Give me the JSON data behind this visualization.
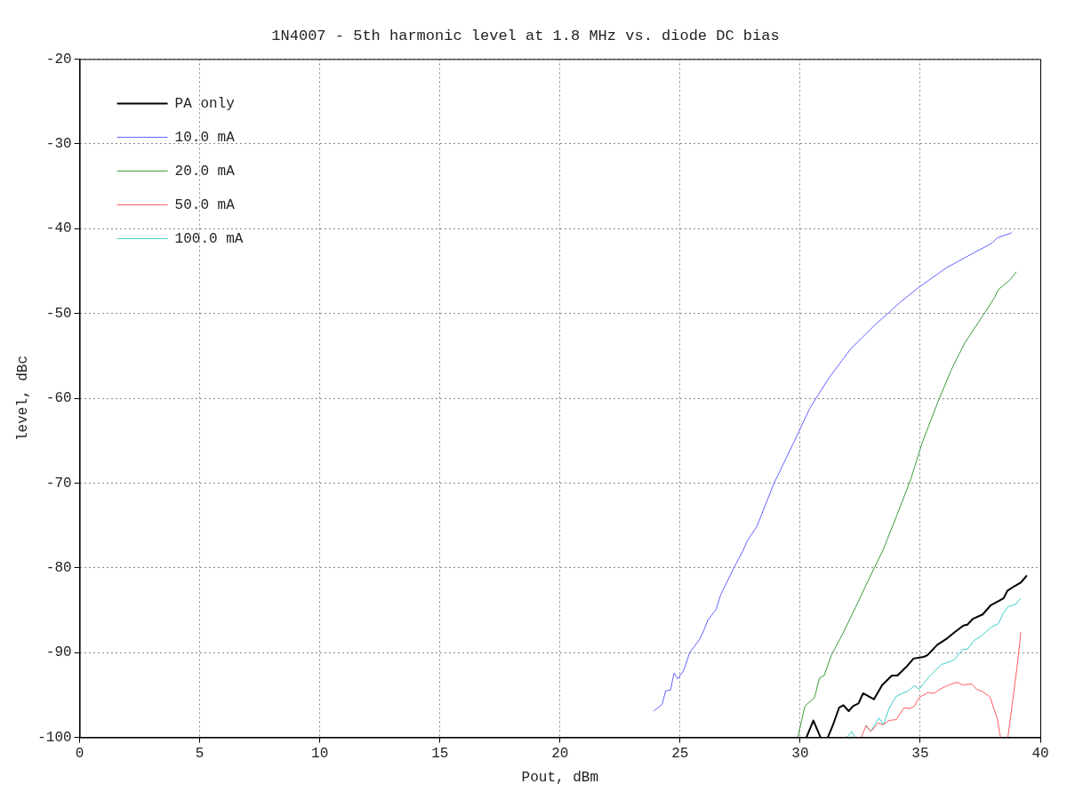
{
  "chart_data": {
    "type": "line",
    "title": "1N4007 - 5th harmonic level at 1.8 MHz vs. diode DC bias",
    "xlabel": "Pout, dBm",
    "ylabel": "level, dBc",
    "xlim": [
      0,
      40
    ],
    "xticks": [
      0,
      5,
      10,
      15,
      20,
      25,
      30,
      35,
      40
    ],
    "ylim": [
      -100,
      -20
    ],
    "yticks": [
      -100,
      -90,
      -80,
      -70,
      -60,
      -50,
      -40,
      -30,
      -20
    ],
    "grid": true,
    "legend": "top left",
    "marker": "none",
    "line_style": "solid",
    "series": [
      {
        "name": "PA only",
        "color": "#000000",
        "x": [
          30.26,
          30.55,
          30.85,
          31.0,
          31.15,
          31.37,
          31.62,
          31.8,
          32.02,
          32.2,
          32.43,
          32.62,
          33.07,
          33.42,
          33.82,
          34.05,
          34.45,
          34.72,
          35.14,
          35.3,
          35.7,
          36.08,
          36.43,
          36.8,
          36.96,
          37.2,
          37.6,
          37.94,
          38.47,
          38.63,
          38.9,
          39.2,
          39.44
        ],
        "values": [
          -100,
          -98.0,
          -100,
          null,
          -100,
          -98.5,
          -96.5,
          -96.2,
          -96.9,
          -96.3,
          -96.0,
          -94.8,
          -95.5,
          -93.8,
          -92.7,
          -92.7,
          -91.6,
          -90.7,
          -90.5,
          -90.3,
          -89.1,
          -88.4,
          -87.6,
          -86.8,
          -86.7,
          -86.0,
          -85.5,
          -84.4,
          -83.6,
          -82.7,
          -82.2,
          -81.7,
          -80.9
        ]
      },
      {
        "name": "10.0 mA",
        "color": "#6464ff",
        "x": [
          23.9,
          24.25,
          24.4,
          24.6,
          24.75,
          24.9,
          25.15,
          25.4,
          25.8,
          26.0,
          26.15,
          26.5,
          26.7,
          26.9,
          27.2,
          27.6,
          27.8,
          28.2,
          28.9,
          29.7,
          30.4,
          31.2,
          32.1,
          33.1,
          34.2,
          34.95,
          36.1,
          37.2,
          38.0,
          38.2,
          38.8
        ],
        "values": [
          -96.9,
          -96.1,
          -94.5,
          -94.4,
          -92.4,
          -93.1,
          -92.1,
          -90.0,
          -88.5,
          -87.3,
          -86.2,
          -84.9,
          -83.1,
          -82.0,
          -80.2,
          -78.1,
          -76.8,
          -75.1,
          -70.1,
          -65.4,
          -61.2,
          -57.6,
          -54.2,
          -51.4,
          -48.6,
          -46.9,
          -44.6,
          -42.9,
          -41.7,
          -41.1,
          -40.5
        ]
      },
      {
        "name": "20.0 mA",
        "color": "#3c9a3c",
        "x": [
          29.9,
          30.2,
          30.6,
          30.8,
          31.0,
          31.3,
          31.75,
          32.3,
          32.9,
          33.45,
          34.0,
          34.6,
          35.1,
          35.7,
          36.3,
          36.85,
          37.6,
          38.1,
          38.25,
          38.75,
          39.0
        ],
        "values": [
          -100,
          -96.3,
          -95.3,
          -93.0,
          -92.7,
          -90.3,
          -87.9,
          -84.7,
          -81.1,
          -77.9,
          -74.0,
          -69.6,
          -65.1,
          -60.7,
          -56.6,
          -53.5,
          -50.3,
          -48.1,
          -47.2,
          -46.0,
          -45.1
        ]
      },
      {
        "name": "50.0 mA",
        "color": "#ff5a5a",
        "x": [
          32.54,
          32.75,
          32.94,
          33.26,
          33.45,
          33.7,
          34.0,
          34.32,
          34.57,
          34.76,
          34.95,
          35.33,
          35.58,
          35.83,
          36.2,
          36.52,
          36.77,
          37.15,
          37.34,
          37.59,
          37.9,
          38.21,
          38.34,
          38.5,
          38.65,
          39.03,
          39.19
        ],
        "values": [
          -100,
          -98.6,
          -99.3,
          -98.3,
          -98.5,
          -98.0,
          -97.9,
          -96.5,
          -96.6,
          -96.3,
          -95.3,
          -94.7,
          -94.8,
          -94.3,
          -93.8,
          -93.5,
          -93.8,
          -93.7,
          -94.3,
          -94.6,
          -95.2,
          -97.8,
          -100,
          null,
          -100,
          -91.7,
          -87.6
        ]
      },
      {
        "name": "100.0 mA",
        "color": "#3ccccc",
        "x": [
          31.94,
          32.15,
          32.28,
          32.4,
          32.54,
          32.72,
          32.94,
          33.28,
          33.47,
          33.7,
          33.98,
          34.26,
          34.51,
          34.76,
          34.95,
          35.38,
          35.89,
          36.39,
          36.77,
          36.96,
          37.27,
          37.52,
          37.96,
          38.25,
          38.47,
          38.65,
          38.97,
          39.18
        ],
        "values": [
          -100,
          -99.3,
          -100,
          null,
          null,
          -98.6,
          -99.3,
          -97.7,
          -98.5,
          -96.6,
          -95.2,
          -94.8,
          -94.5,
          -93.9,
          -94.3,
          -92.8,
          -91.4,
          -90.9,
          -89.6,
          -89.6,
          -88.5,
          -88.1,
          -87.0,
          -86.6,
          -85.3,
          -84.6,
          -84.3,
          -83.6
        ]
      }
    ]
  }
}
